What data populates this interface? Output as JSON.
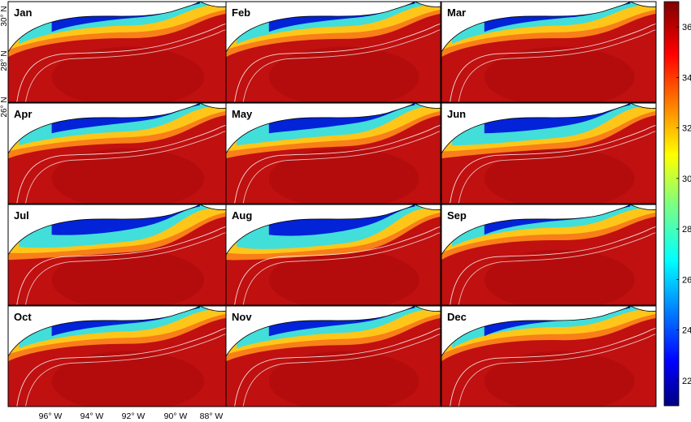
{
  "chart_data": {
    "type": "heatmap",
    "panels": [
      {
        "label": "Jan"
      },
      {
        "label": "Feb"
      },
      {
        "label": "Mar"
      },
      {
        "label": "Apr"
      },
      {
        "label": "May"
      },
      {
        "label": "Jun"
      },
      {
        "label": "Jul"
      },
      {
        "label": "Aug"
      },
      {
        "label": "Sep"
      },
      {
        "label": "Oct"
      },
      {
        "label": "Nov"
      },
      {
        "label": "Dec"
      }
    ],
    "xticks": [
      "96° W",
      "94° W",
      "92° W",
      "90° W",
      "88° W"
    ],
    "yticks": [
      "30° N",
      "28° N",
      "26° N"
    ],
    "colorbar": {
      "ticks": [
        "36",
        "34",
        "32",
        "30",
        "28",
        "26",
        "24",
        "22"
      ],
      "range": [
        21,
        37
      ],
      "colormap": "jet",
      "colors": [
        "#00007f",
        "#0000ff",
        "#00ffff",
        "#ffff00",
        "#ff0000",
        "#7f0000"
      ]
    },
    "grid": false
  }
}
